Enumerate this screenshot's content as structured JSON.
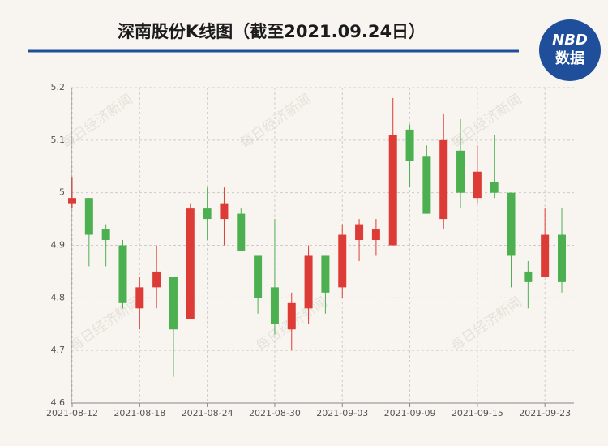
{
  "header": {
    "title": "深南股份K线图（截至2021.09.24日）",
    "logo_top": "NBD",
    "logo_bottom": "数据"
  },
  "watermark": "每日经济新闻",
  "chart_data": {
    "type": "candlestick",
    "categories": [
      "2021-08-12",
      null,
      null,
      null,
      "2021-08-18",
      null,
      null,
      null,
      "2021-08-24",
      null,
      null,
      null,
      "2021-08-30",
      null,
      null,
      null,
      "2021-09-03",
      null,
      null,
      null,
      "2021-09-09",
      null,
      null,
      null,
      "2021-09-15",
      null,
      null,
      null,
      "2021-09-23",
      null
    ],
    "open": [
      4.98,
      4.99,
      4.93,
      4.9,
      4.78,
      4.82,
      4.84,
      4.76,
      4.97,
      4.95,
      4.96,
      4.88,
      4.82,
      4.74,
      4.78,
      4.88,
      4.82,
      4.91,
      4.91,
      4.9,
      5.12,
      5.07,
      4.95,
      5.08,
      4.99,
      5.02,
      5.0,
      4.85,
      4.84,
      4.92
    ],
    "high": [
      5.03,
      4.99,
      4.94,
      4.91,
      4.84,
      4.9,
      4.84,
      4.98,
      5.01,
      5.01,
      4.97,
      4.88,
      4.95,
      4.81,
      4.9,
      4.88,
      4.94,
      4.95,
      4.95,
      5.18,
      5.13,
      5.09,
      5.15,
      5.14,
      5.09,
      5.11,
      5.0,
      4.87,
      4.97,
      4.97
    ],
    "low": [
      4.97,
      4.86,
      4.86,
      4.78,
      4.74,
      4.78,
      4.65,
      4.76,
      4.91,
      4.9,
      4.89,
      4.77,
      4.73,
      4.7,
      4.75,
      4.77,
      4.8,
      4.87,
      4.88,
      4.9,
      5.01,
      4.96,
      4.93,
      4.97,
      4.98,
      4.99,
      4.82,
      4.78,
      4.84,
      4.81
    ],
    "close": [
      4.99,
      4.92,
      4.91,
      4.79,
      4.82,
      4.85,
      4.74,
      4.97,
      4.95,
      4.98,
      4.89,
      4.8,
      4.75,
      4.79,
      4.88,
      4.81,
      4.92,
      4.94,
      4.93,
      5.11,
      5.06,
      4.96,
      5.1,
      5.0,
      5.04,
      5.0,
      4.88,
      4.83,
      4.92,
      4.83
    ],
    "up_color": "#dd3b36",
    "down_color": "#4caf50",
    "ylim": [
      4.6,
      5.2
    ],
    "yticks": [
      4.6,
      4.7,
      4.8,
      4.9,
      5,
      5.1,
      5.2
    ],
    "grid": true
  }
}
